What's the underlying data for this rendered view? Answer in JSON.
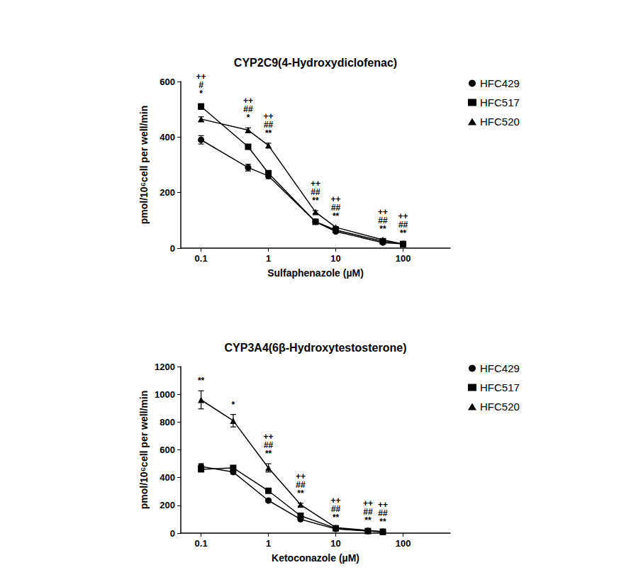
{
  "chart_data": [
    {
      "type": "line",
      "title": "CYP2C9(4-Hydroxydiclofenac)",
      "x_label": "Sulfaphenazole (µM)",
      "y_label": "pmol/10⁶cell per well/min",
      "x": [
        0.1,
        0.5,
        1,
        5,
        10,
        50,
        100
      ],
      "xlim": [
        0.05,
        500
      ],
      "xticks": [
        0.1,
        1,
        10,
        100
      ],
      "log": "x",
      "ylim": [
        0,
        600
      ],
      "yticks": [
        0,
        200,
        400,
        600
      ],
      "grid": false,
      "legend": "right",
      "series": [
        {
          "name": "HFC429",
          "color": "#000000",
          "marker": "circle",
          "values": [
            390,
            290,
            260,
            95,
            60,
            20,
            15
          ],
          "errors": [
            15,
            12,
            10,
            5,
            3,
            2,
            2
          ],
          "annotations": [
            "*",
            "*",
            "**",
            "**",
            "**",
            "**",
            "**"
          ]
        },
        {
          "name": "HFC517",
          "color": "#000000",
          "marker": "square",
          "values": [
            510,
            365,
            270,
            95,
            65,
            25,
            15
          ],
          "errors": [
            10,
            8,
            8,
            4,
            3,
            2,
            2
          ],
          "annotations": [
            "#",
            "##",
            "##",
            "##",
            "##",
            "##",
            "##"
          ]
        },
        {
          "name": "HFC520",
          "color": "#000000",
          "marker": "triangle",
          "values": [
            465,
            425,
            370,
            130,
            75,
            30,
            15
          ],
          "errors": [
            8,
            8,
            8,
            5,
            3,
            2,
            2
          ],
          "annotations": [
            "++",
            "++",
            "++",
            "++",
            "++",
            "++",
            "++"
          ]
        }
      ]
    },
    {
      "type": "line",
      "title": "CYP3A4(6β-Hydroxytestosterone)",
      "x_label": "Ketoconazole (µM)",
      "y_label": "pmol/10⁶cell per well/min",
      "x": [
        0.1,
        0.3,
        1,
        3,
        10,
        30,
        50
      ],
      "xlim": [
        0.05,
        500
      ],
      "xticks": [
        0.1,
        1,
        10,
        100
      ],
      "log": "x",
      "ylim": [
        0,
        1200
      ],
      "yticks": [
        0,
        200,
        400,
        600,
        800,
        1000,
        1200
      ],
      "grid": false,
      "legend": "right",
      "series": [
        {
          "name": "HFC429",
          "color": "#000000",
          "marker": "circle",
          "values": [
            480,
            440,
            235,
            100,
            30,
            15,
            10
          ],
          "errors": [
            20,
            15,
            10,
            8,
            3,
            2,
            2
          ],
          "annotations": [
            "**",
            "*",
            "**",
            "**",
            "**",
            "**",
            "**"
          ]
        },
        {
          "name": "HFC517",
          "color": "#000000",
          "marker": "square",
          "values": [
            460,
            470,
            305,
            125,
            35,
            15,
            10
          ],
          "errors": [
            15,
            15,
            10,
            8,
            3,
            2,
            2
          ],
          "annotations": [
            null,
            null,
            "##",
            "##",
            "##",
            "##",
            "##"
          ]
        },
        {
          "name": "HFC520",
          "color": "#000000",
          "marker": "triangle",
          "values": [
            960,
            810,
            470,
            205,
            40,
            20,
            10
          ],
          "errors": [
            65,
            45,
            30,
            10,
            3,
            2,
            2
          ],
          "annotations": [
            null,
            null,
            "++",
            "++",
            "++",
            "++",
            "++"
          ]
        }
      ]
    }
  ]
}
